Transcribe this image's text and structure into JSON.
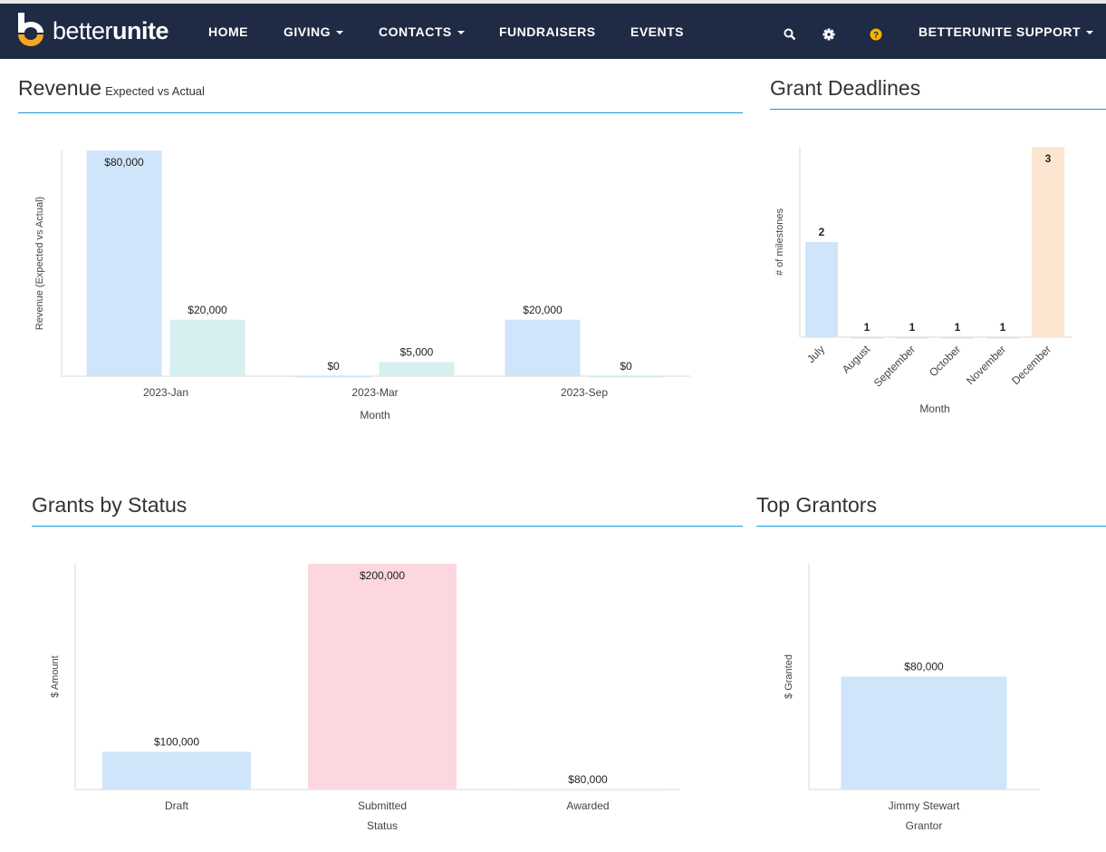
{
  "nav": {
    "brand_light": "better",
    "brand_bold": "unite",
    "items": [
      {
        "label": "HOME",
        "dropdown": false
      },
      {
        "label": "GIVING",
        "dropdown": true
      },
      {
        "label": "CONTACTS",
        "dropdown": true
      },
      {
        "label": "FUNDRAISERS",
        "dropdown": false
      },
      {
        "label": "EVENTS",
        "dropdown": false
      }
    ],
    "icons": [
      "search-icon",
      "gear-icon",
      "help-icon"
    ],
    "user_menu": "BETTERUNITE SUPPORT",
    "colors": {
      "background": "#1f2a44",
      "accent": "#f5a623",
      "rule": "#1a9bd7"
    }
  },
  "panels": {
    "revenue": {
      "title": "Revenue",
      "subtitle": "Expected vs Actual"
    },
    "deadlines": {
      "title": "Grant Deadlines"
    },
    "status": {
      "title": "Grants by Status"
    },
    "grantors": {
      "title": "Top Grantors"
    }
  },
  "chart_data": [
    {
      "id": "revenue",
      "type": "bar",
      "xlabel": "Month",
      "ylabel": "Revenue (Expected vs Actual)",
      "categories": [
        "2023-Jan",
        "2023-Mar",
        "2023-Sep"
      ],
      "series": [
        {
          "values": [
            80000,
            0,
            20000
          ],
          "labels": [
            "$80,000",
            "$0",
            "$20,000"
          ],
          "color": "#cfe5f9"
        },
        {
          "values": [
            20000,
            5000,
            0
          ],
          "labels": [
            "$20,000",
            "$5,000",
            "$0"
          ],
          "color": "#d5f0ef"
        }
      ],
      "ylim": [
        0,
        80000
      ],
      "grid": false
    },
    {
      "id": "deadlines",
      "type": "bar",
      "xlabel": "Month",
      "ylabel": "# of milestones",
      "categories": [
        "July",
        "August",
        "September",
        "October",
        "November",
        "December"
      ],
      "values": [
        2,
        1,
        1,
        1,
        1,
        3
      ],
      "labels": [
        "2",
        "1",
        "1",
        "1",
        "1",
        "3"
      ],
      "colors": [
        "#cfe5f9",
        "#cfe5f9",
        "#cfe5f9",
        "#cfe5f9",
        "#cfe5f9",
        "#fde6d1"
      ],
      "ylim": [
        1,
        3
      ],
      "grid": false
    },
    {
      "id": "status",
      "type": "bar",
      "xlabel": "Status",
      "ylabel": "$ Amount",
      "categories": [
        "Draft",
        "Submitted",
        "Awarded"
      ],
      "values": [
        100000,
        200000,
        80000
      ],
      "labels": [
        "$100,000",
        "$200,000",
        "$80,000"
      ],
      "colors": [
        "#cfe5f9",
        "#fdd7e0",
        "#e6f4f3"
      ],
      "ylim": [
        80000,
        200000
      ],
      "grid": false
    },
    {
      "id": "grantors",
      "type": "bar",
      "xlabel": "Grantor",
      "ylabel": "$ Granted",
      "categories": [
        "Jimmy Stewart"
      ],
      "values": [
        80000
      ],
      "labels": [
        "$80,000"
      ],
      "colors": [
        "#cfe5f9"
      ],
      "ylim": [
        0,
        160000
      ],
      "grid": false
    }
  ]
}
